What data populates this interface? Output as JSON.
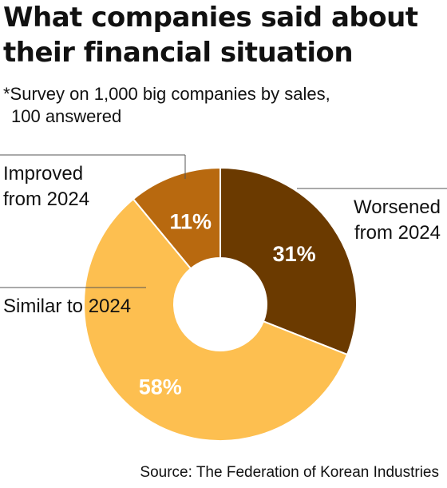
{
  "title_line1": "What companies said about",
  "title_line2": "their financial situation",
  "subtitle_line1": "*Survey on 1,000 big companies by sales,",
  "subtitle_line2": "100 answered",
  "source": "Source: The Federation of Korean Industries",
  "chart_data": {
    "type": "pie",
    "donut": true,
    "slices": [
      {
        "label_line1": "Worsened",
        "label_line2": "from 2024",
        "value": 31,
        "value_label": "31%",
        "color": "#6b3a00"
      },
      {
        "label_line1": "Similar to 2024",
        "label_line2": "",
        "value": 58,
        "value_label": "58%",
        "color": "#fdbf50"
      },
      {
        "label_line1": "Improved",
        "label_line2": "from 2024",
        "value": 11,
        "value_label": "11%",
        "color": "#b8690f"
      }
    ]
  }
}
